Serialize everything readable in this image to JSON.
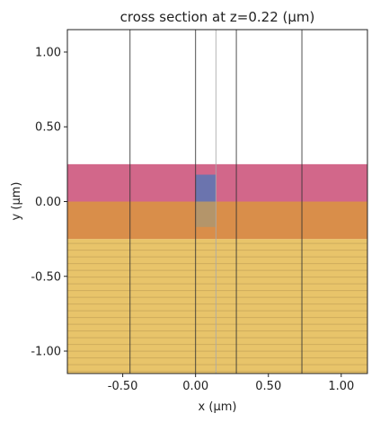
{
  "chart_data": {
    "type": "cross-section",
    "title": "cross section at z=0.22 (μm)",
    "xlabel": "x (μm)",
    "ylabel": "y (μm)",
    "xlim": [
      -0.88,
      1.18
    ],
    "ylim": [
      -1.15,
      1.15
    ],
    "xticks": [
      -0.5,
      0.0,
      0.5,
      1.0
    ],
    "xtick_labels": [
      "-0.50",
      "0.00",
      "0.50",
      "1.00"
    ],
    "yticks": [
      -1.0,
      -0.5,
      0.0,
      0.5,
      1.0
    ],
    "ytick_labels": [
      "-1.00",
      "-0.50",
      "0.00",
      "0.50",
      "1.00"
    ],
    "regions": [
      {
        "name": "substrate",
        "x": [
          -0.88,
          1.18
        ],
        "y": [
          -1.15,
          -0.25
        ],
        "color": "#e8c46a",
        "hatched": true
      },
      {
        "name": "box",
        "x": [
          -0.88,
          1.18
        ],
        "y": [
          -0.25,
          0.0
        ],
        "color": "#d98e4a"
      },
      {
        "name": "cladding",
        "x": [
          -0.88,
          1.18
        ],
        "y": [
          0.0,
          0.25
        ],
        "color": "#d2678a"
      },
      {
        "name": "core",
        "x": [
          0.0,
          0.14
        ],
        "y": [
          0.0,
          0.18
        ],
        "color": "#6b74ae"
      },
      {
        "name": "core-below",
        "x": [
          0.0,
          0.14
        ],
        "y": [
          -0.17,
          0.0
        ],
        "color": "#b4956a"
      }
    ],
    "vertical_lines": [
      {
        "x": -0.45,
        "color": "#333333"
      },
      {
        "x": 0.0,
        "color": "#333333"
      },
      {
        "x": 0.14,
        "color": "#aaaaaa"
      },
      {
        "x": 0.28,
        "color": "#333333"
      },
      {
        "x": 0.73,
        "color": "#333333"
      }
    ],
    "grid": false
  }
}
